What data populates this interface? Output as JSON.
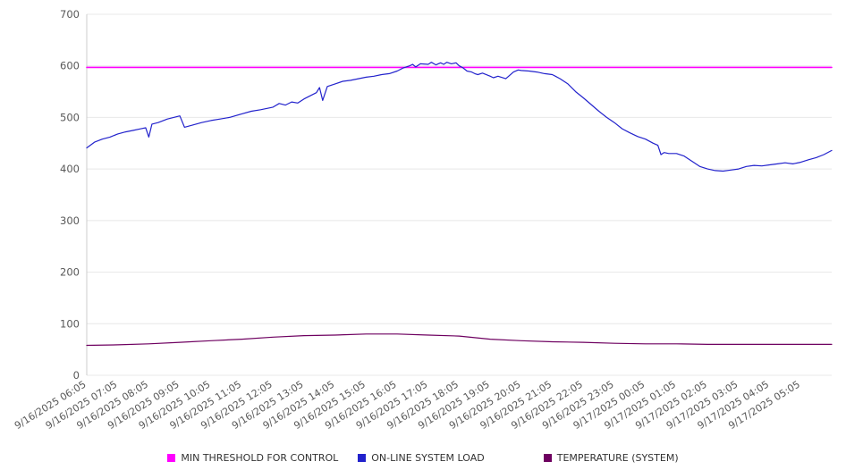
{
  "chart_data": {
    "type": "line",
    "title": "",
    "xlabel": "",
    "ylabel": "",
    "grid": true,
    "legend_position": "bottom",
    "xlim": [
      0,
      24
    ],
    "ylim": [
      0,
      700
    ],
    "yticks": [
      0,
      100,
      200,
      300,
      400,
      500,
      600,
      700
    ],
    "categories": [
      "9/16/2025 06:05",
      "9/16/2025 07:05",
      "9/16/2025 08:05",
      "9/16/2025 09:05",
      "9/16/2025 10:05",
      "9/16/2025 11:05",
      "9/16/2025 12:05",
      "9/16/2025 13:05",
      "9/16/2025 14:05",
      "9/16/2025 15:05",
      "9/16/2025 16:05",
      "9/16/2025 17:05",
      "9/16/2025 18:05",
      "9/16/2025 19:05",
      "9/16/2025 20:05",
      "9/16/2025 21:05",
      "9/16/2025 22:05",
      "9/16/2025 23:05",
      "9/17/2025 00:05",
      "9/17/2025 01:05",
      "9/17/2025 02:05",
      "9/17/2025 03:05",
      "9/17/2025 04:05",
      "9/17/2025 05:05"
    ],
    "series": [
      {
        "name": "MIN THRESHOLD FOR CONTROL",
        "color": "#ff00ff",
        "type": "constant",
        "value": 597,
        "stroke_width": 1.6
      },
      {
        "name": "ON-LINE SYSTEM LOAD",
        "color": "#2222cc",
        "type": "line",
        "stroke_width": 1.2,
        "x": [
          0,
          0.25,
          0.5,
          0.75,
          1,
          1.25,
          1.5,
          1.75,
          1.9,
          2.0,
          2.1,
          2.3,
          2.6,
          2.8,
          3.0,
          3.15,
          3.4,
          3.7,
          4.0,
          4.3,
          4.6,
          5.0,
          5.3,
          5.6,
          6.0,
          6.2,
          6.4,
          6.6,
          6.8,
          7.0,
          7.2,
          7.4,
          7.5,
          7.6,
          7.75,
          8.0,
          8.25,
          8.5,
          8.75,
          9.0,
          9.25,
          9.5,
          9.75,
          10.0,
          10.2,
          10.4,
          10.5,
          10.6,
          10.75,
          11.0,
          11.1,
          11.25,
          11.4,
          11.5,
          11.6,
          11.75,
          11.9,
          12.0,
          12.1,
          12.25,
          12.4,
          12.5,
          12.6,
          12.75,
          13.0,
          13.1,
          13.25,
          13.5,
          13.75,
          13.9,
          14.0,
          14.25,
          14.5,
          14.75,
          15.0,
          15.1,
          15.25,
          15.5,
          15.75,
          16.0,
          16.25,
          16.5,
          16.75,
          17.0,
          17.25,
          17.5,
          17.75,
          18.0,
          18.25,
          18.4,
          18.5,
          18.6,
          18.75,
          19.0,
          19.25,
          19.5,
          19.75,
          20.0,
          20.25,
          20.5,
          20.75,
          21.0,
          21.25,
          21.5,
          21.75,
          22.0,
          22.25,
          22.5,
          22.75,
          23.0,
          23.25,
          23.5,
          23.75,
          24.0
        ],
        "y": [
          441,
          452,
          458,
          462,
          468,
          472,
          475,
          478,
          480,
          462,
          487,
          490,
          497,
          500,
          503,
          481,
          485,
          490,
          494,
          497,
          500,
          507,
          512,
          515,
          520,
          527,
          524,
          530,
          528,
          536,
          542,
          548,
          558,
          533,
          560,
          565,
          570,
          572,
          575,
          578,
          580,
          583,
          585,
          590,
          596,
          600,
          603,
          598,
          604,
          603,
          607,
          602,
          606,
          603,
          607,
          604,
          606,
          600,
          597,
          590,
          588,
          585,
          583,
          586,
          580,
          577,
          580,
          575,
          588,
          592,
          591,
          590,
          588,
          585,
          583,
          580,
          575,
          565,
          550,
          538,
          525,
          512,
          500,
          490,
          478,
          470,
          463,
          458,
          450,
          446,
          428,
          432,
          430,
          430,
          425,
          415,
          405,
          400,
          397,
          396,
          398,
          400,
          405,
          407,
          406,
          408,
          410,
          412,
          410,
          413,
          418,
          422,
          428,
          436
        ]
      },
      {
        "name": "TEMPERATURE (SYSTEM)",
        "color": "#6e0060",
        "type": "line",
        "stroke_width": 1.2,
        "x": [
          0,
          1,
          2,
          3,
          4,
          5,
          6,
          7,
          8,
          9,
          10,
          11,
          12,
          13,
          14,
          15,
          16,
          17,
          18,
          19,
          20,
          21,
          22,
          23,
          24
        ],
        "y": [
          58,
          59,
          61,
          64,
          67,
          70,
          74,
          77,
          78,
          80,
          80,
          78,
          76,
          70,
          67,
          65,
          64,
          62,
          61,
          61,
          60,
          60,
          60,
          60,
          60
        ]
      }
    ]
  },
  "colors": {
    "background": "#ffffff",
    "grid": "#e8e8e8",
    "axis": "#cccccc",
    "tick_text": "#595959",
    "legend_text": "#333333"
  }
}
